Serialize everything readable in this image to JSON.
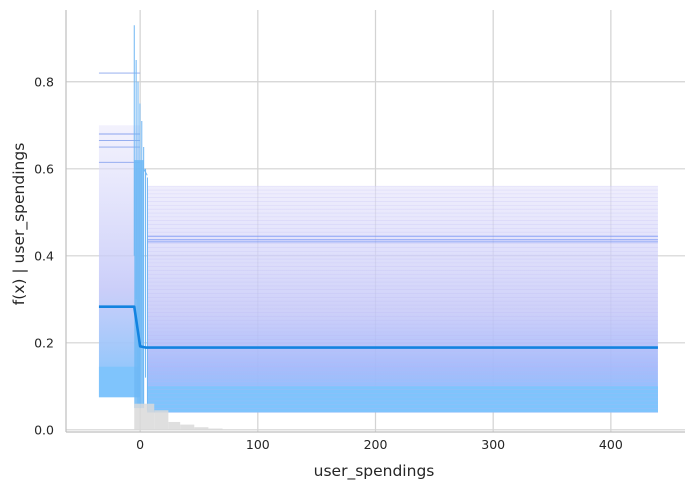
{
  "chart_data": {
    "type": "line",
    "title": "",
    "xlabel": "user_spendings",
    "ylabel": "f(x) | user_spendings",
    "xlim": [
      -63,
      463
    ],
    "ylim": [
      -0.005,
      0.965
    ],
    "x_ticks": [
      0,
      100,
      200,
      300,
      400
    ],
    "x_tick_labels": [
      "0",
      "100",
      "200",
      "300",
      "400"
    ],
    "y_ticks": [
      0.0,
      0.2,
      0.4,
      0.6,
      0.8
    ],
    "y_tick_labels": [
      "0.0",
      "0.2",
      "0.4",
      "0.6",
      "0.8"
    ],
    "grid": true,
    "legend": "none",
    "series": [
      {
        "role": "average",
        "color": "#1383e0",
        "x": [
          -35,
          -5,
          0,
          5,
          440
        ],
        "y": [
          0.283,
          0.283,
          0.192,
          0.189,
          0.189
        ]
      }
    ],
    "ice_lines": {
      "color": "#6a8cf5",
      "fill_color": "#7fc4fc",
      "left_levels": [
        0.82,
        0.68,
        0.665,
        0.65,
        0.615
      ],
      "right_levels": [
        0.445,
        0.437,
        0.432
      ],
      "band_upper": 0.56,
      "band_lower": 0.04,
      "x_start": -35,
      "x_end": 440
    },
    "histogram": {
      "color": "#d9d9d9",
      "bins": [
        {
          "x0": -5,
          "x1": 0,
          "y": 0.06
        },
        {
          "x0": 0,
          "x1": 12,
          "y": 0.06
        },
        {
          "x0": 12,
          "x1": 24,
          "y": 0.045
        },
        {
          "x0": 24,
          "x1": 34,
          "y": 0.018
        },
        {
          "x0": 34,
          "x1": 46,
          "y": 0.012
        },
        {
          "x0": 46,
          "x1": 58,
          "y": 0.006
        },
        {
          "x0": 58,
          "x1": 70,
          "y": 0.003
        }
      ]
    },
    "colors": {
      "grid": "#d3d3d3",
      "axis": "#bfbfbf",
      "text": "#262626"
    }
  }
}
